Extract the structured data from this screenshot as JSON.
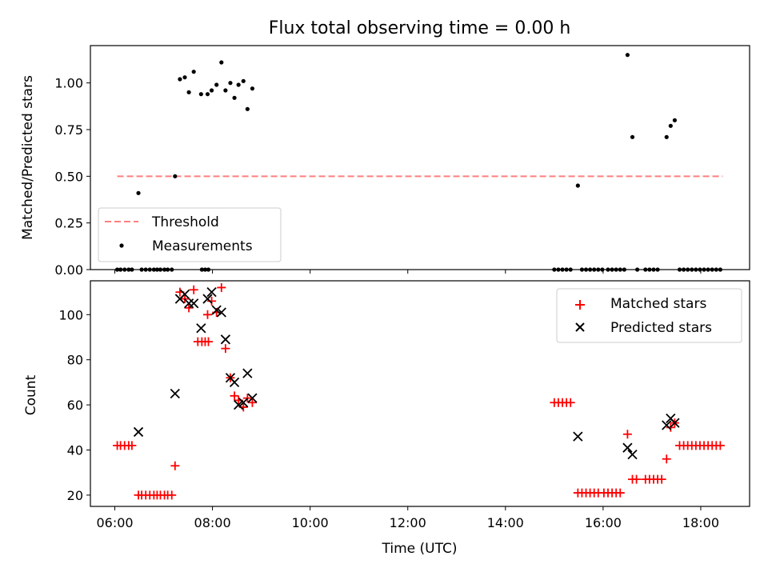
{
  "figure": {
    "title": "Flux total observing time = 0.00 h"
  },
  "chart_data": [
    {
      "type": "scatter",
      "panel": "top",
      "title": "Flux total observing time = 0.00 h",
      "ylabel": "Matched/Predicted stars",
      "xlabel": "",
      "ylim": [
        0.0,
        1.2
      ],
      "yticks": [
        0.0,
        0.25,
        0.5,
        0.75,
        1.0
      ],
      "ytick_labels": [
        "0.00",
        "0.25",
        "0.50",
        "0.75",
        "1.00"
      ],
      "xlim": [
        "05:30",
        "19:00"
      ],
      "legend": {
        "placement": "lower-left",
        "entries": [
          "Threshold",
          "Measurements"
        ]
      },
      "threshold": {
        "name": "Threshold",
        "y": 0.5,
        "x": [
          "06:03",
          "18:27"
        ],
        "color": "#ff7f7f",
        "style": "dashed"
      },
      "series": [
        {
          "name": "Measurements",
          "color": "#000000",
          "marker": "dot",
          "points": [
            [
              "06:03",
              0
            ],
            [
              "06:07",
              0
            ],
            [
              "06:12",
              0
            ],
            [
              "06:17",
              0
            ],
            [
              "06:21",
              0
            ],
            [
              "06:29",
              0.41
            ],
            [
              "06:33",
              0
            ],
            [
              "06:38",
              0
            ],
            [
              "06:43",
              0
            ],
            [
              "06:48",
              0
            ],
            [
              "06:52",
              0
            ],
            [
              "06:56",
              0
            ],
            [
              "07:01",
              0
            ],
            [
              "07:05",
              0
            ],
            [
              "07:10",
              0
            ],
            [
              "07:14",
              0.5
            ],
            [
              "07:20",
              1.02
            ],
            [
              "07:26",
              1.03
            ],
            [
              "07:31",
              0.95
            ],
            [
              "07:37",
              1.06
            ],
            [
              "07:46",
              0.94
            ],
            [
              "07:47",
              0
            ],
            [
              "07:51",
              0
            ],
            [
              "07:55",
              0
            ],
            [
              "07:54",
              0.94
            ],
            [
              "07:59",
              0.96
            ],
            [
              "08:05",
              0.99
            ],
            [
              "08:11",
              1.11
            ],
            [
              "08:16",
              0.96
            ],
            [
              "08:22",
              1.0
            ],
            [
              "08:27",
              0.92
            ],
            [
              "08:32",
              0.99
            ],
            [
              "08:38",
              1.01
            ],
            [
              "08:43",
              0.86
            ],
            [
              "08:49",
              0.97
            ],
            [
              "15:00",
              0
            ],
            [
              "15:05",
              0
            ],
            [
              "15:10",
              0
            ],
            [
              "15:15",
              0
            ],
            [
              "15:20",
              0
            ],
            [
              "15:29",
              0.45
            ],
            [
              "15:34",
              0
            ],
            [
              "15:39",
              0
            ],
            [
              "15:44",
              0
            ],
            [
              "15:49",
              0
            ],
            [
              "15:54",
              0
            ],
            [
              "15:59",
              0
            ],
            [
              "16:06",
              0
            ],
            [
              "16:11",
              0
            ],
            [
              "16:16",
              0
            ],
            [
              "16:21",
              0
            ],
            [
              "16:26",
              0
            ],
            [
              "16:30",
              1.15
            ],
            [
              "16:36",
              0.71
            ],
            [
              "16:42",
              0
            ],
            [
              "16:52",
              0
            ],
            [
              "16:57",
              0
            ],
            [
              "17:02",
              0
            ],
            [
              "17:07",
              0
            ],
            [
              "17:18",
              0.71
            ],
            [
              "17:23",
              0.77
            ],
            [
              "17:28",
              0.8
            ],
            [
              "17:34",
              0
            ],
            [
              "17:39",
              0
            ],
            [
              "17:44",
              0
            ],
            [
              "17:49",
              0
            ],
            [
              "17:54",
              0
            ],
            [
              "17:59",
              0
            ],
            [
              "18:04",
              0
            ],
            [
              "18:09",
              0
            ],
            [
              "18:14",
              0
            ],
            [
              "18:19",
              0
            ],
            [
              "18:24",
              0
            ]
          ]
        }
      ]
    },
    {
      "type": "scatter",
      "panel": "bottom",
      "xlabel": "Time (UTC)",
      "ylabel": "Count",
      "ylim": [
        15,
        115
      ],
      "yticks": [
        20,
        40,
        60,
        80,
        100
      ],
      "ytick_labels": [
        "20",
        "40",
        "60",
        "80",
        "100"
      ],
      "xlim": [
        "05:30",
        "19:00"
      ],
      "xticks": [
        "06:00",
        "08:00",
        "10:00",
        "12:00",
        "14:00",
        "16:00",
        "18:00"
      ],
      "xtick_labels": [
        "06:00",
        "08:00",
        "10:00",
        "12:00",
        "14:00",
        "16:00",
        "18:00"
      ],
      "legend": {
        "placement": "top-right",
        "entries": [
          "Matched stars",
          "Predicted stars"
        ]
      },
      "series": [
        {
          "name": "Matched stars",
          "color": "#ff0000",
          "marker": "plus",
          "points": [
            [
              "06:03",
              42
            ],
            [
              "06:07",
              42
            ],
            [
              "06:12",
              42
            ],
            [
              "06:17",
              42
            ],
            [
              "06:21",
              42
            ],
            [
              "06:29",
              20
            ],
            [
              "06:33",
              20
            ],
            [
              "06:38",
              20
            ],
            [
              "06:43",
              20
            ],
            [
              "06:48",
              20
            ],
            [
              "06:52",
              20
            ],
            [
              "06:56",
              20
            ],
            [
              "07:01",
              20
            ],
            [
              "07:05",
              20
            ],
            [
              "07:10",
              20
            ],
            [
              "07:14",
              33
            ],
            [
              "07:20",
              110
            ],
            [
              "07:26",
              107
            ],
            [
              "07:31",
              103
            ],
            [
              "07:37",
              111
            ],
            [
              "07:42",
              88
            ],
            [
              "07:47",
              88
            ],
            [
              "07:51",
              88
            ],
            [
              "07:55",
              88
            ],
            [
              "07:54",
              100
            ],
            [
              "07:59",
              106
            ],
            [
              "08:05",
              101
            ],
            [
              "08:11",
              112
            ],
            [
              "08:16",
              85
            ],
            [
              "08:22",
              72
            ],
            [
              "08:27",
              64
            ],
            [
              "08:32",
              62
            ],
            [
              "08:38",
              59
            ],
            [
              "08:43",
              63
            ],
            [
              "08:49",
              61
            ],
            [
              "15:00",
              61
            ],
            [
              "15:05",
              61
            ],
            [
              "15:10",
              61
            ],
            [
              "15:15",
              61
            ],
            [
              "15:20",
              61
            ],
            [
              "15:29",
              21
            ],
            [
              "15:34",
              21
            ],
            [
              "15:39",
              21
            ],
            [
              "15:44",
              21
            ],
            [
              "15:49",
              21
            ],
            [
              "15:54",
              21
            ],
            [
              "16:01",
              21
            ],
            [
              "16:06",
              21
            ],
            [
              "16:11",
              21
            ],
            [
              "16:16",
              21
            ],
            [
              "16:21",
              21
            ],
            [
              "16:30",
              47
            ],
            [
              "16:36",
              27
            ],
            [
              "16:41",
              27
            ],
            [
              "16:52",
              27
            ],
            [
              "16:57",
              27
            ],
            [
              "17:02",
              27
            ],
            [
              "17:07",
              27
            ],
            [
              "17:12",
              27
            ],
            [
              "17:18",
              36
            ],
            [
              "17:23",
              50
            ],
            [
              "17:28",
              52
            ],
            [
              "17:34",
              42
            ],
            [
              "17:39",
              42
            ],
            [
              "17:44",
              42
            ],
            [
              "17:49",
              42
            ],
            [
              "17:54",
              42
            ],
            [
              "17:59",
              42
            ],
            [
              "18:04",
              42
            ],
            [
              "18:09",
              42
            ],
            [
              "18:14",
              42
            ],
            [
              "18:19",
              42
            ],
            [
              "18:24",
              42
            ]
          ]
        },
        {
          "name": "Predicted stars",
          "color": "#000000",
          "marker": "x",
          "points": [
            [
              "06:29",
              48
            ],
            [
              "07:14",
              65
            ],
            [
              "07:20",
              107
            ],
            [
              "07:26",
              109
            ],
            [
              "07:31",
              105
            ],
            [
              "07:37",
              105
            ],
            [
              "07:46",
              94
            ],
            [
              "07:54",
              107
            ],
            [
              "07:59",
              110
            ],
            [
              "08:05",
              102
            ],
            [
              "08:11",
              101
            ],
            [
              "08:16",
              89
            ],
            [
              "08:22",
              72
            ],
            [
              "08:27",
              70
            ],
            [
              "08:32",
              60
            ],
            [
              "08:38",
              61
            ],
            [
              "08:43",
              74
            ],
            [
              "08:49",
              63
            ],
            [
              "15:29",
              46
            ],
            [
              "16:30",
              41
            ],
            [
              "16:36",
              38
            ],
            [
              "17:18",
              51
            ],
            [
              "17:23",
              54
            ],
            [
              "17:28",
              52
            ]
          ]
        }
      ]
    }
  ]
}
